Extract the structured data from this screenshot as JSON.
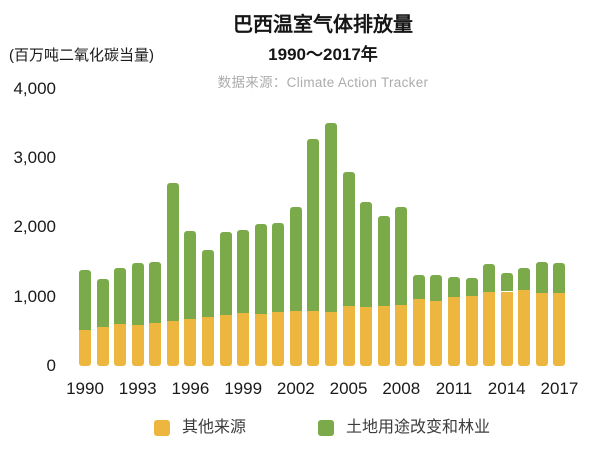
{
  "header": {
    "title": "巴西温室气体排放量",
    "subtitle": "1990～2017年",
    "source": "数据来源：Climate Action Tracker",
    "unit_label": "(百万吨二氧化碳当量)"
  },
  "colors": {
    "other_series": "#EDB63F",
    "lulucf_series": "#7BAA4A",
    "title_text": "#161616",
    "source_text": "#ACACAC",
    "axis_text": "#1A1A1A"
  },
  "chart_data": {
    "type": "bar",
    "stacked": true,
    "title": "巴西温室气体排放量",
    "subtitle": "1990～2017年",
    "source": "数据来源：Climate Action Tracker",
    "ylabel": "(百万吨二氧化碳当量)",
    "xlabel": "",
    "grid": false,
    "legend_position": "bottom",
    "ylim": [
      0,
      4000
    ],
    "y_ticks": [
      0,
      1000,
      2000,
      3000,
      4000
    ],
    "y_tick_labels": [
      "0",
      "1,000",
      "2,000",
      "3,000",
      "4,000"
    ],
    "x_tick_labels": [
      "1990",
      "1993",
      "1996",
      "1999",
      "2002",
      "2005",
      "2008",
      "2011",
      "2014",
      "2017"
    ],
    "categories": [
      1990,
      1991,
      1992,
      1993,
      1994,
      1995,
      1996,
      1997,
      1998,
      1999,
      2000,
      2001,
      2002,
      2003,
      2004,
      2005,
      2006,
      2007,
      2008,
      2009,
      2010,
      2011,
      2012,
      2013,
      2014,
      2015,
      2016,
      2017
    ],
    "series": [
      {
        "name": "其他来源",
        "color": "#EDB63F",
        "values": [
          520,
          565,
          600,
          590,
          620,
          650,
          675,
          705,
          730,
          760,
          755,
          780,
          800,
          790,
          785,
          865,
          850,
          860,
          875,
          960,
          945,
          995,
          1005,
          1065,
          1075,
          1095,
          1055,
          1050
        ]
      },
      {
        "name": "土地用途改变和林业",
        "color": "#7BAA4A",
        "values": [
          860,
          685,
          810,
          890,
          880,
          1990,
          1275,
          965,
          1210,
          1200,
          1290,
          1285,
          1500,
          2480,
          2715,
          1935,
          1520,
          1300,
          1415,
          360,
          370,
          295,
          270,
          410,
          270,
          325,
          450,
          430
        ]
      }
    ],
    "totals": [
      1380,
      1250,
      1410,
      1480,
      1500,
      2640,
      1950,
      1670,
      1940,
      1960,
      2045,
      2065,
      2300,
      3270,
      3500,
      2800,
      2370,
      2160,
      2290,
      1320,
      1315,
      1290,
      1275,
      1475,
      1345,
      1420,
      1505,
      1480
    ]
  }
}
